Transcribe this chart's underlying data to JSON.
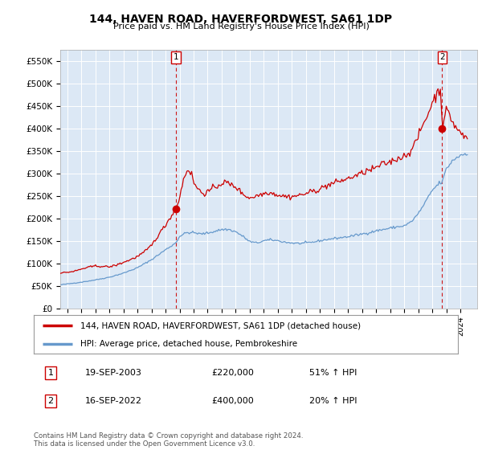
{
  "title": "144, HAVEN ROAD, HAVERFORDWEST, SA61 1DP",
  "subtitle": "Price paid vs. HM Land Registry's House Price Index (HPI)",
  "ylabel_ticks": [
    "£0",
    "£50K",
    "£100K",
    "£150K",
    "£200K",
    "£250K",
    "£300K",
    "£350K",
    "£400K",
    "£450K",
    "£500K",
    "£550K"
  ],
  "ytick_values": [
    0,
    50000,
    100000,
    150000,
    200000,
    250000,
    300000,
    350000,
    400000,
    450000,
    500000,
    550000
  ],
  "ylim": [
    0,
    575000
  ],
  "xlim_start": 1995.5,
  "xlim_end": 2025.2,
  "legend_line1": "144, HAVEN ROAD, HAVERFORDWEST, SA61 1DP (detached house)",
  "legend_line2": "HPI: Average price, detached house, Pembrokeshire",
  "line1_color": "#cc0000",
  "line2_color": "#6699cc",
  "plot_bg_color": "#dce8f5",
  "marker1_date": 2003.72,
  "marker1_value": 220000,
  "marker2_date": 2022.71,
  "marker2_value": 400000,
  "vline1_x": 2003.72,
  "vline2_x": 2022.71,
  "annotation1": {
    "label": "1",
    "date_str": "19-SEP-2003",
    "price": "£220,000",
    "hpi": "51% ↑ HPI"
  },
  "annotation2": {
    "label": "2",
    "date_str": "16-SEP-2022",
    "price": "£400,000",
    "hpi": "20% ↑ HPI"
  },
  "footnote": "Contains HM Land Registry data © Crown copyright and database right 2024.\nThis data is licensed under the Open Government Licence v3.0.",
  "background_color": "#ffffff",
  "grid_color": "#ffffff",
  "hpi_years_start": 1995.5,
  "price_years_start": 1995.5
}
